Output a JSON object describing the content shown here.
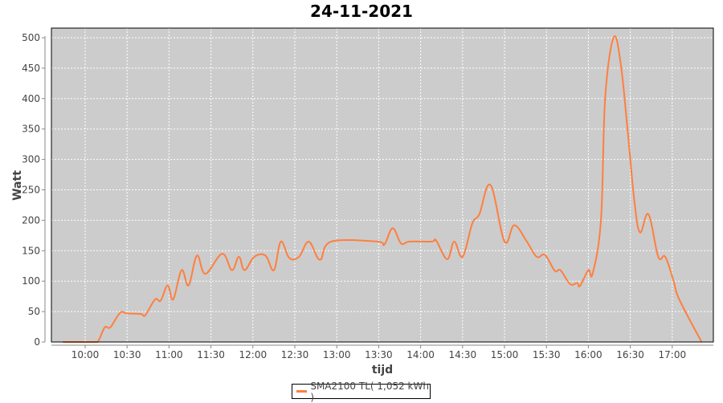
{
  "chart_data": {
    "type": "line",
    "title": "24-11-2021",
    "xlabel": "tijd",
    "ylabel": "Watt",
    "ylim": [
      0,
      510
    ],
    "xlim": [
      "09:35",
      "17:29"
    ],
    "yticks": [
      0,
      50,
      100,
      150,
      200,
      250,
      300,
      350,
      400,
      450,
      500
    ],
    "xticks": [
      "10:00",
      "10:30",
      "11:00",
      "11:30",
      "12:00",
      "12:30",
      "13:00",
      "13:30",
      "14:00",
      "14:30",
      "15:00",
      "15:30",
      "16:00",
      "16:30",
      "17:00"
    ],
    "grid": true,
    "background": "#CCCCCC",
    "legend_position": "bottom",
    "series": [
      {
        "name": "SMA2100 TL( 1,052 kWh )",
        "color": "#FF7F3F",
        "x": [
          "09:44",
          "10:05",
          "10:09",
          "10:14",
          "10:18",
          "10:25",
          "10:30",
          "10:40",
          "10:43",
          "10:50",
          "10:54",
          "10:59",
          "11:03",
          "11:09",
          "11:14",
          "11:20",
          "11:26",
          "11:38",
          "11:45",
          "11:50",
          "11:54",
          "12:01",
          "12:09",
          "12:15",
          "12:20",
          "12:26",
          "12:33",
          "12:40",
          "12:48",
          "12:56",
          "13:29",
          "13:34",
          "13:40",
          "13:46",
          "13:52",
          "14:08",
          "14:11",
          "14:19",
          "14:24",
          "14:30",
          "14:37",
          "14:42",
          "14:50",
          "15:00",
          "15:07",
          "15:16",
          "15:23",
          "15:29",
          "15:36",
          "15:40",
          "15:47",
          "15:52",
          "15:54",
          "16:00",
          "16:03",
          "16:09",
          "16:12",
          "16:18",
          "16:23",
          "16:28",
          "16:33",
          "16:37",
          "16:43",
          "16:50",
          "16:55",
          "17:01",
          "17:05",
          "17:21"
        ],
        "y": [
          0,
          0,
          0,
          24,
          24,
          48,
          47,
          46,
          44,
          70,
          68,
          93,
          70,
          118,
          93,
          142,
          112,
          145,
          118,
          140,
          118,
          140,
          142,
          118,
          165,
          138,
          140,
          165,
          135,
          165,
          165,
          160,
          187,
          162,
          165,
          165,
          167,
          136,
          165,
          140,
          195,
          210,
          258,
          165,
          192,
          165,
          140,
          143,
          117,
          118,
          95,
          97,
          92,
          118,
          112,
          200,
          400,
          500,
          460,
          350,
          230,
          180,
          210,
          140,
          140,
          100,
          70,
          0
        ]
      }
    ]
  }
}
